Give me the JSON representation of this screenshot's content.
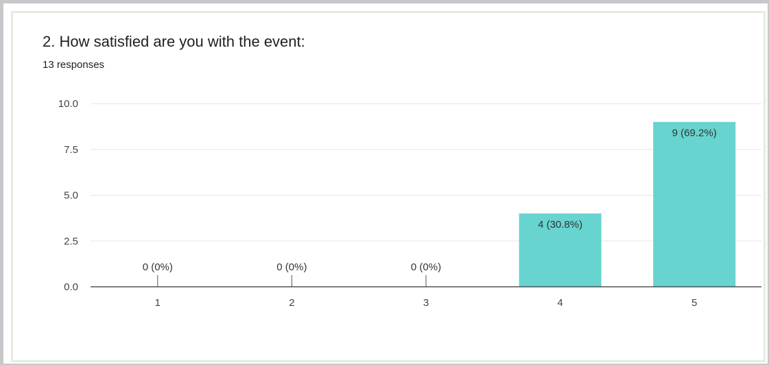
{
  "question": {
    "title": "2. How satisfied are you with the event:",
    "responses": "13 responses"
  },
  "colors": {
    "bar": "#67d4cf",
    "grid": "#e6e6e6",
    "axis": "#333333"
  },
  "chart_data": {
    "type": "bar",
    "categories": [
      "1",
      "2",
      "3",
      "4",
      "5"
    ],
    "values": [
      0,
      0,
      0,
      4,
      9
    ],
    "data_labels": [
      "0 (0%)",
      "0 (0%)",
      "0 (0%)",
      "4 (30.8%)",
      "9 (69.2%)"
    ],
    "ylim": [
      0,
      10
    ],
    "yticks": [
      0,
      2.5,
      5,
      7.5,
      10
    ],
    "ytick_labels": [
      "0.0",
      "2.5",
      "5.0",
      "7.5",
      "10.0"
    ],
    "grid": true,
    "title": "",
    "xlabel": "",
    "ylabel": ""
  }
}
